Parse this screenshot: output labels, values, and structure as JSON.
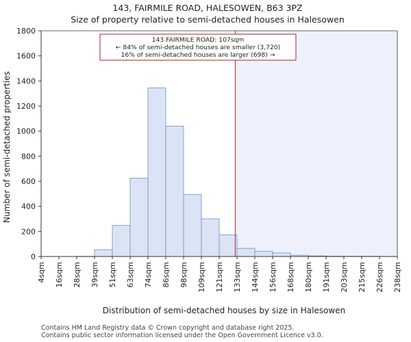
{
  "chart_data": {
    "type": "bar",
    "title": "143, FAIRMILE ROAD, HALESOWEN, B63 3PZ",
    "subtitle": "Size of property relative to semi-detached houses in Halesowen",
    "xlabel": "Distribution of semi-detached houses by size in Halesowen",
    "ylabel": "Number of semi-detached properties",
    "ylim": [
      0,
      1800
    ],
    "yticks": [
      "0",
      "200",
      "400",
      "600",
      "800",
      "1000",
      "1200",
      "1400",
      "1600",
      "1800"
    ],
    "bin_labels": [
      "4sqm",
      "16sqm",
      "28sqm",
      "39sqm",
      "51sqm",
      "63sqm",
      "74sqm",
      "86sqm",
      "98sqm",
      "109sqm",
      "121sqm",
      "133sqm",
      "144sqm",
      "156sqm",
      "168sqm",
      "180sqm",
      "191sqm",
      "203sqm",
      "215sqm",
      "226sqm",
      "238sqm"
    ],
    "values": [
      0,
      0,
      2,
      55,
      248,
      625,
      1345,
      1040,
      495,
      300,
      172,
      65,
      42,
      28,
      10,
      5,
      3,
      2,
      2,
      1
    ],
    "marker": {
      "bin_position": 10.9,
      "color": "#b22222",
      "annotation": [
        "143 FAIRMILE ROAD: 107sqm",
        "← 84% of semi-detached houses are smaller (3,720)",
        "16% of semi-detached houses are larger (698) →"
      ]
    },
    "colors": {
      "bar_fill": "#dbe4f5",
      "bar_stroke": "#6f8fc8",
      "shade": "#eef1fb"
    },
    "grid": false
  },
  "footer": {
    "line1": "Contains HM Land Registry data © Crown copyright and database right 2025.",
    "line2": "Contains public sector information licensed under the Open Government Licence v3.0."
  }
}
